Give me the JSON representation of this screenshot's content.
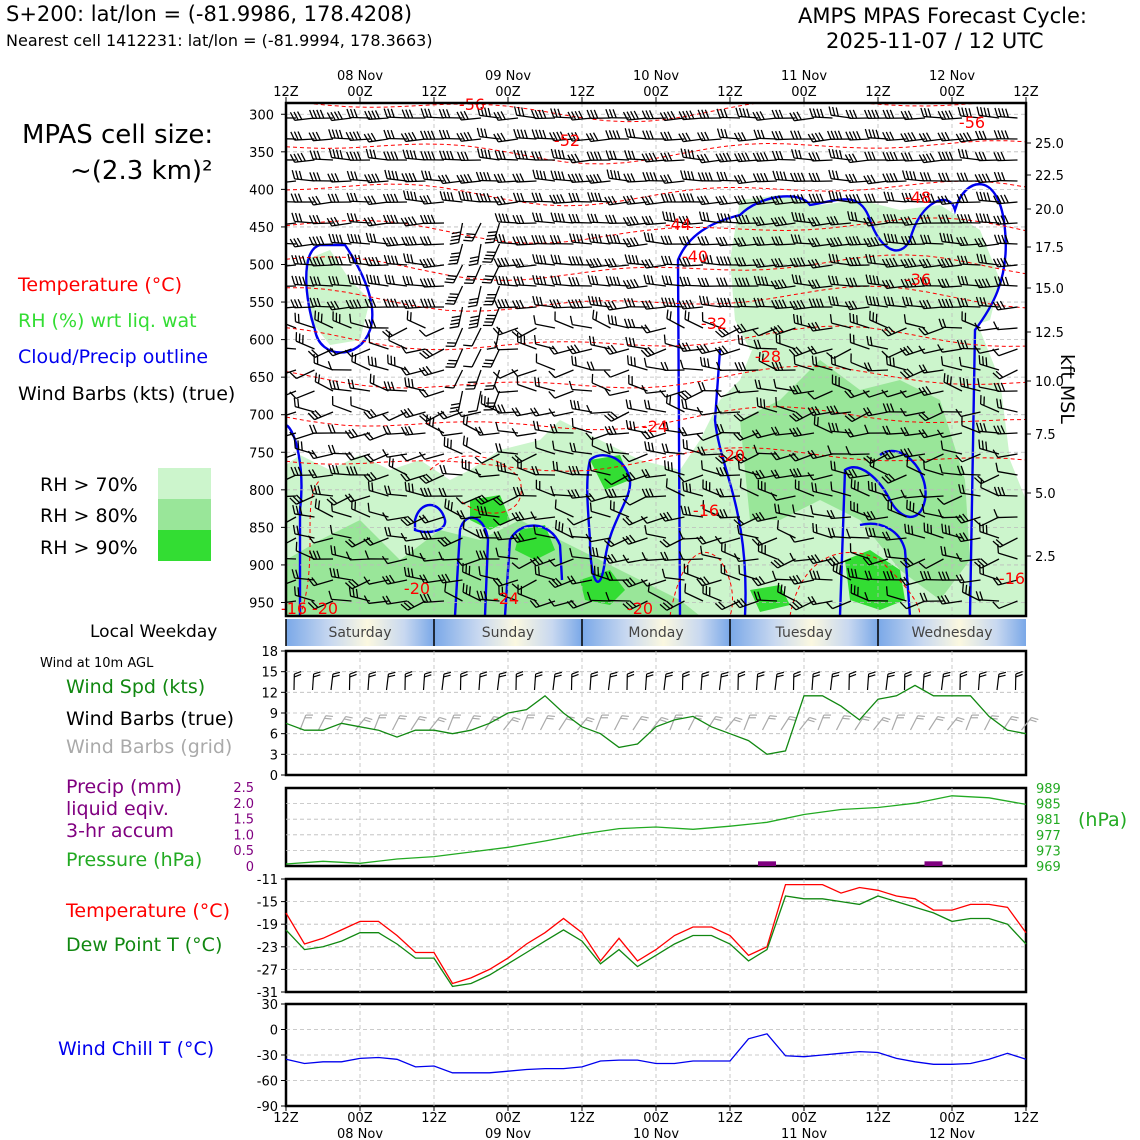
{
  "header": {
    "point_label": "S+200: lat/lon = (-81.9986, 178.4208)",
    "nearest_label": "Nearest cell 1412231: lat/lon = (-81.9994, 178.3663)",
    "cycle_title": "AMPS MPAS Forecast Cycle:",
    "cycle_time": "2025-11-07 / 12 UTC"
  },
  "side_labels": {
    "cell_size_line1": "MPAS cell size:",
    "cell_size_line2": "~(2.3 km)²",
    "legend_temperature": "Temperature (°C)",
    "legend_rh": "RH (%) wrt liq. wat",
    "legend_cloud": "Cloud/Precip outline",
    "legend_wind": "Wind Barbs (kts) (true)",
    "rh70": "RH > 70%",
    "rh80": "RH > 80%",
    "rh90": "RH > 90%",
    "local_weekday": "Local Weekday",
    "wind_10m": "Wind at 10m AGL",
    "wind_spd": "Wind Spd (kts)",
    "wind_barbs_true": "Wind Barbs (true)",
    "wind_barbs_grid": "Wind Barbs (grid)",
    "precip_l1": "Precip (mm)",
    "precip_l2": "liquid eqiv.",
    "precip_l3": "3-hr accum",
    "pressure": "Pressure (hPa)",
    "pressure_unit": "(hPa)",
    "temp": "Temperature (°C)",
    "dewpoint": "Dew Point T (°C)",
    "windchill": "Wind Chill T (°C)",
    "kft": "kft MSL"
  },
  "colors": {
    "temperature": "#ff0000",
    "rh": "#33cc33",
    "cloud": "#0000ee",
    "wind": "#000000",
    "grid_wind": "#aaaaaa",
    "pressure": "#22aa22",
    "dewpoint": "#118811",
    "precip": "#800080",
    "windchill": "#0000ee",
    "rh70": "#ccf5cc",
    "rh80": "#99e699",
    "rh90": "#33dd33"
  },
  "time_axis": {
    "top_hours": [
      "12Z",
      "00Z",
      "12Z",
      "00Z",
      "12Z",
      "00Z",
      "12Z",
      "00Z",
      "12Z",
      "00Z",
      "12Z"
    ],
    "dates": [
      "08 Nov",
      "09 Nov",
      "10 Nov",
      "11 Nov",
      "12 Nov"
    ],
    "weekdays": [
      "Saturday",
      "Sunday",
      "Monday",
      "Tuesday",
      "Wednesday"
    ]
  },
  "chart_data": [
    {
      "type": "heatmap",
      "name": "time-height cross section",
      "y_pressure_ticks": [
        300,
        350,
        400,
        450,
        500,
        550,
        600,
        650,
        700,
        750,
        800,
        850,
        900,
        950
      ],
      "y_kft_ticks": [
        "25.0",
        "22.5",
        "20.0",
        "17.5",
        "15.0",
        "12.5",
        "10.0",
        "7.5",
        "5.0",
        "2.5"
      ],
      "temperature_contour_labels": [
        "-56",
        "-56",
        "-52",
        "-48",
        "-44",
        "-40",
        "-36",
        "-32",
        "-28",
        "-24",
        "-20",
        "-16",
        "-16",
        "-20",
        "-24",
        "-20",
        "-20",
        "-16"
      ]
    },
    {
      "type": "line",
      "name": "wind speed 10m",
      "x_hours": [
        0,
        3,
        6,
        9,
        12,
        15,
        18,
        21,
        24,
        27,
        30,
        33,
        36,
        39,
        42,
        45,
        48,
        51,
        54,
        57,
        60,
        63,
        66,
        69,
        72,
        75,
        78,
        81,
        84,
        87,
        90,
        93,
        96,
        99,
        102,
        105,
        108,
        111,
        114,
        117,
        120
      ],
      "values": [
        7.5,
        6.5,
        6.5,
        7.5,
        7,
        6.5,
        5.5,
        6.5,
        6.5,
        6,
        6.5,
        7.5,
        9,
        9.5,
        11.5,
        9,
        7,
        6,
        4,
        4.5,
        7,
        8,
        8.5,
        7,
        6,
        5,
        3,
        3.5,
        11.5,
        11.5,
        10,
        8,
        11,
        11.5,
        13,
        11.5,
        11.5,
        11.5,
        8.5,
        6.5,
        6
      ],
      "ylim": [
        0,
        18
      ],
      "y_ticks": [
        0,
        3,
        6,
        9,
        12,
        15,
        18
      ]
    },
    {
      "type": "line",
      "name": "surface pressure",
      "x_hours": [
        0,
        6,
        12,
        18,
        24,
        30,
        36,
        42,
        48,
        54,
        60,
        66,
        72,
        78,
        84,
        90,
        96,
        102,
        108,
        114,
        120
      ],
      "values": [
        969.5,
        970.2,
        969.7,
        970.8,
        971.4,
        972.6,
        973.8,
        975.4,
        977.2,
        978.6,
        979.0,
        978.4,
        979.2,
        980.2,
        982.2,
        983.5,
        984.0,
        985.1,
        987.0,
        986.5,
        984.8
      ],
      "ylim": [
        969,
        989
      ],
      "y_ticks_right": [
        969,
        973,
        977,
        981,
        985,
        989
      ],
      "precip_y_ticks": [
        "0",
        "0.5",
        "1.0",
        "1.5",
        "2.0",
        "2.5"
      ],
      "precip_bars": [
        {
          "x": 78,
          "value": 0.15
        },
        {
          "x": 105,
          "value": 0.15
        }
      ]
    },
    {
      "type": "line",
      "name": "temperature and dew point",
      "x_hours": [
        0,
        3,
        6,
        9,
        12,
        15,
        18,
        21,
        24,
        27,
        30,
        33,
        36,
        39,
        42,
        45,
        48,
        51,
        54,
        57,
        60,
        63,
        66,
        69,
        72,
        75,
        78,
        81,
        84,
        87,
        90,
        93,
        96,
        99,
        102,
        105,
        108,
        111,
        114,
        117,
        120
      ],
      "temperature": [
        -17,
        -22.5,
        -21.5,
        -20,
        -18.5,
        -18.5,
        -21,
        -24,
        -24,
        -29.5,
        -28.5,
        -27,
        -25,
        -22.5,
        -20.5,
        -18,
        -20.5,
        -25.5,
        -21.5,
        -25.5,
        -23.5,
        -21,
        -19.5,
        -19.5,
        -21,
        -24.5,
        -23,
        -12,
        -12,
        -12,
        -13.5,
        -12.5,
        -13,
        -14,
        -14.5,
        -16.5,
        -16.5,
        -15.5,
        -15.5,
        -16,
        -20.5
      ],
      "dewpoint": [
        -20,
        -23.5,
        -23,
        -22,
        -20.5,
        -20.5,
        -22.5,
        -25,
        -25,
        -30,
        -29.5,
        -28,
        -26,
        -24,
        -22,
        -20,
        -22,
        -26,
        -23.5,
        -26.5,
        -24.5,
        -22.5,
        -21,
        -21,
        -22.5,
        -25.5,
        -23.5,
        -14,
        -14.5,
        -14.5,
        -15,
        -15.5,
        -14,
        -15,
        -16,
        -17,
        -18.5,
        -18,
        -18,
        -19,
        -22.5
      ],
      "ylim": [
        -31,
        -11
      ],
      "y_ticks": [
        -31,
        -27,
        -23,
        -19,
        -15,
        -11
      ]
    },
    {
      "type": "line",
      "name": "wind chill",
      "x_hours": [
        0,
        3,
        6,
        9,
        12,
        15,
        18,
        21,
        24,
        27,
        30,
        33,
        36,
        39,
        42,
        45,
        48,
        51,
        54,
        57,
        60,
        63,
        66,
        69,
        72,
        75,
        78,
        81,
        84,
        87,
        90,
        93,
        96,
        99,
        102,
        105,
        108,
        111,
        114,
        117,
        120
      ],
      "values": [
        -35,
        -40,
        -38,
        -38,
        -34,
        -33,
        -35,
        -44,
        -43,
        -51,
        -51,
        -51,
        -49,
        -47,
        -46,
        -46,
        -44,
        -37,
        -36,
        -36,
        -40,
        -40,
        -37,
        -37,
        -37,
        -11,
        -5,
        -31,
        -32,
        -30,
        -28,
        -26,
        -27,
        -34,
        -38,
        -41,
        -41,
        -40,
        -35,
        -28,
        -35
      ],
      "ylim": [
        -90,
        30
      ],
      "y_ticks": [
        -90,
        -60,
        -30,
        0,
        30
      ]
    }
  ]
}
